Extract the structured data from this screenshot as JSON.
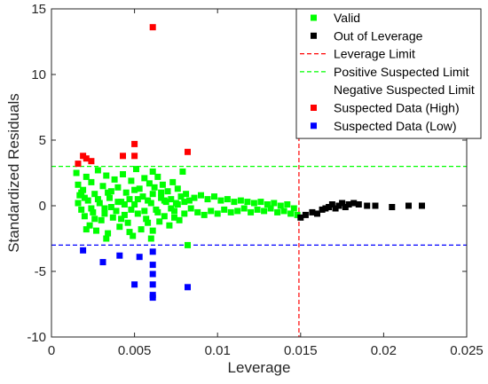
{
  "chart_data": {
    "type": "scatter",
    "xlabel": "Leverage",
    "ylabel": "Standardized Residuals",
    "xlim": [
      0,
      0.025
    ],
    "ylim": [
      -10,
      15
    ],
    "x_ticks": [
      {
        "value": 0,
        "label": "0"
      },
      {
        "value": 0.005,
        "label": "0.005"
      },
      {
        "value": 0.01,
        "label": "0.01"
      },
      {
        "value": 0.015,
        "label": "0.015"
      },
      {
        "value": 0.02,
        "label": "0.02"
      },
      {
        "value": 0.025,
        "label": "0.025"
      }
    ],
    "y_ticks": [
      {
        "value": -10,
        "label": "-10"
      },
      {
        "value": -5,
        "label": "-5"
      },
      {
        "value": 0,
        "label": "0"
      },
      {
        "value": 5,
        "label": "5"
      },
      {
        "value": 10,
        "label": "10"
      },
      {
        "value": 15,
        "label": "15"
      }
    ],
    "grid": false,
    "legend_position": "top-right",
    "reference_lines": [
      {
        "name": "Leverage Limit",
        "orientation": "vertical",
        "value": 0.0149,
        "color": "#ff0000",
        "style": "dashed"
      },
      {
        "name": "Positive Suspected Limit",
        "orientation": "horizontal",
        "value": 3,
        "color": "#00ff00",
        "style": "dashed"
      },
      {
        "name": "Negative Suspected Limit",
        "orientation": "horizontal",
        "value": -3,
        "color": "#0000ff",
        "style": "dashed"
      }
    ],
    "series": [
      {
        "name": "Valid",
        "color": "#00ff00",
        "marker": "square",
        "points": [
          [
            0.0015,
            2.5
          ],
          [
            0.0016,
            1.6
          ],
          [
            0.0017,
            0.8
          ],
          [
            0.0018,
            -0.3
          ],
          [
            0.0019,
            1.2
          ],
          [
            0.002,
            -0.8
          ],
          [
            0.0021,
            2.2
          ],
          [
            0.0022,
            0.4
          ],
          [
            0.0023,
            -1.5
          ],
          [
            0.0024,
            1.8
          ],
          [
            0.0025,
            -0.5
          ],
          [
            0.0026,
            0.9
          ],
          [
            0.0027,
            -1.9
          ],
          [
            0.0028,
            2.7
          ],
          [
            0.0029,
            0.2
          ],
          [
            0.003,
            -1.1
          ],
          [
            0.0031,
            1.5
          ],
          [
            0.0032,
            -0.2
          ],
          [
            0.0033,
            2.3
          ],
          [
            0.0034,
            -2.1
          ],
          [
            0.0035,
            0.6
          ],
          [
            0.0036,
            1.1
          ],
          [
            0.0037,
            -0.9
          ],
          [
            0.0038,
            2.0
          ],
          [
            0.0039,
            -0.4
          ],
          [
            0.004,
            1.4
          ],
          [
            0.0041,
            -1.6
          ],
          [
            0.0042,
            0.3
          ],
          [
            0.0043,
            2.4
          ],
          [
            0.0044,
            -0.7
          ],
          [
            0.0045,
            1.0
          ],
          [
            0.0046,
            -1.3
          ],
          [
            0.0047,
            0.5
          ],
          [
            0.0048,
            1.9
          ],
          [
            0.0049,
            -2.3
          ],
          [
            0.005,
            0.1
          ],
          [
            0.0051,
            2.8
          ],
          [
            0.0052,
            -0.6
          ],
          [
            0.0053,
            1.3
          ],
          [
            0.0054,
            -1.8
          ],
          [
            0.0055,
            0.7
          ],
          [
            0.0056,
            2.1
          ],
          [
            0.0057,
            -1.0
          ],
          [
            0.0058,
            0.4
          ],
          [
            0.0059,
            1.7
          ],
          [
            0.006,
            -2.5
          ],
          [
            0.0061,
            0.9
          ],
          [
            0.0062,
            1.4
          ],
          [
            0.0063,
            -0.3
          ],
          [
            0.0064,
            2.2
          ],
          [
            0.0065,
            -1.2
          ],
          [
            0.0066,
            0.6
          ],
          [
            0.0067,
            1.6
          ],
          [
            0.0068,
            -0.8
          ],
          [
            0.0069,
            0.3
          ],
          [
            0.007,
            1.1
          ],
          [
            0.0071,
            -1.5
          ],
          [
            0.0072,
            0.5
          ],
          [
            0.0073,
            1.8
          ],
          [
            0.0074,
            -0.4
          ],
          [
            0.0075,
            0.2
          ],
          [
            0.0076,
            1.3
          ],
          [
            0.0077,
            -1.1
          ],
          [
            0.0078,
            0.7
          ],
          [
            0.0079,
            2.6
          ],
          [
            0.008,
            -0.6
          ],
          [
            0.0081,
            0.9
          ],
          [
            0.0082,
            -3.0
          ],
          [
            0.0083,
            0.4
          ],
          [
            0.0084,
            -0.2
          ],
          [
            0.0086,
            0.6
          ],
          [
            0.0088,
            -0.5
          ],
          [
            0.009,
            0.8
          ],
          [
            0.0092,
            -0.7
          ],
          [
            0.0094,
            0.5
          ],
          [
            0.0096,
            -0.4
          ],
          [
            0.0098,
            0.7
          ],
          [
            0.01,
            -0.6
          ],
          [
            0.0102,
            0.4
          ],
          [
            0.0104,
            -0.3
          ],
          [
            0.0106,
            0.5
          ],
          [
            0.0108,
            -0.5
          ],
          [
            0.011,
            0.3
          ],
          [
            0.0112,
            -0.4
          ],
          [
            0.0114,
            0.4
          ],
          [
            0.0116,
            -0.2
          ],
          [
            0.0118,
            0.3
          ],
          [
            0.012,
            -0.5
          ],
          [
            0.0122,
            0.2
          ],
          [
            0.0124,
            -0.3
          ],
          [
            0.0126,
            0.3
          ],
          [
            0.0128,
            -0.4
          ],
          [
            0.013,
            0.1
          ],
          [
            0.0132,
            -0.2
          ],
          [
            0.0134,
            0.2
          ],
          [
            0.0136,
            -0.5
          ],
          [
            0.0138,
            0.0
          ],
          [
            0.014,
            -0.4
          ],
          [
            0.0142,
            0.1
          ],
          [
            0.0144,
            -0.6
          ],
          [
            0.0146,
            -0.2
          ],
          [
            0.0148,
            -0.7
          ],
          [
            0.0016,
            0.2
          ],
          [
            0.002,
            0.6
          ],
          [
            0.0024,
            -0.2
          ],
          [
            0.0028,
            0.5
          ],
          [
            0.0032,
            -0.6
          ],
          [
            0.0036,
            -0.1
          ],
          [
            0.004,
            0.3
          ],
          [
            0.0044,
            0.1
          ],
          [
            0.0048,
            -0.3
          ],
          [
            0.0052,
            0.5
          ],
          [
            0.0056,
            -0.4
          ],
          [
            0.006,
            0.2
          ],
          [
            0.0064,
            -0.5
          ],
          [
            0.0068,
            0.4
          ],
          [
            0.0072,
            -0.2
          ],
          [
            0.0076,
            0.1
          ],
          [
            0.008,
            0.3
          ],
          [
            0.0018,
            1.0
          ],
          [
            0.0026,
            -1.0
          ],
          [
            0.0034,
            1.0
          ],
          [
            0.0042,
            -1.0
          ],
          [
            0.005,
            1.2
          ],
          [
            0.0058,
            -1.3
          ],
          [
            0.0066,
            1.0
          ],
          [
            0.0074,
            -0.9
          ],
          [
            0.0061,
            -1.9
          ],
          [
            0.0061,
            2.6
          ],
          [
            0.0047,
            -2.0
          ],
          [
            0.0033,
            -2.5
          ],
          [
            0.0021,
            -1.8
          ]
        ]
      },
      {
        "name": "Out of Leverage",
        "color": "#000000",
        "marker": "square",
        "points": [
          [
            0.015,
            -0.9
          ],
          [
            0.0153,
            -0.7
          ],
          [
            0.0157,
            -0.5
          ],
          [
            0.016,
            -0.6
          ],
          [
            0.0163,
            -0.3
          ],
          [
            0.0165,
            -0.2
          ],
          [
            0.0167,
            -0.1
          ],
          [
            0.0169,
            0.1
          ],
          [
            0.0171,
            -0.2
          ],
          [
            0.0173,
            0.0
          ],
          [
            0.0175,
            0.2
          ],
          [
            0.0177,
            -0.1
          ],
          [
            0.0179,
            0.1
          ],
          [
            0.0182,
            0.2
          ],
          [
            0.0185,
            0.1
          ],
          [
            0.019,
            0.0
          ],
          [
            0.0195,
            0.0
          ],
          [
            0.0205,
            -0.1
          ],
          [
            0.0215,
            0.0
          ],
          [
            0.0223,
            0.0
          ]
        ]
      },
      {
        "name": "Suspected Data (High)",
        "color": "#ff0000",
        "marker": "square",
        "points": [
          [
            0.0016,
            3.2
          ],
          [
            0.0019,
            3.8
          ],
          [
            0.0021,
            3.6
          ],
          [
            0.0024,
            3.4
          ],
          [
            0.0043,
            3.8
          ],
          [
            0.005,
            4.7
          ],
          [
            0.005,
            3.8
          ],
          [
            0.0061,
            13.6
          ],
          [
            0.0082,
            4.1
          ]
        ]
      },
      {
        "name": "Suspected Data (Low)",
        "color": "#0000ff",
        "marker": "square",
        "points": [
          [
            0.0019,
            -3.4
          ],
          [
            0.0031,
            -4.3
          ],
          [
            0.0041,
            -3.8
          ],
          [
            0.005,
            -6.0
          ],
          [
            0.0053,
            -3.9
          ],
          [
            0.0061,
            -3.5
          ],
          [
            0.0061,
            -4.5
          ],
          [
            0.0061,
            -5.2
          ],
          [
            0.0061,
            -6.0
          ],
          [
            0.0061,
            -6.8
          ],
          [
            0.0061,
            -7.0
          ],
          [
            0.0082,
            -6.2
          ]
        ]
      }
    ],
    "legend": [
      {
        "label": "Valid",
        "kind": "marker",
        "color": "#00ff00"
      },
      {
        "label": "Out of Leverage",
        "kind": "marker",
        "color": "#000000"
      },
      {
        "label": "Leverage Limit",
        "kind": "dash",
        "color": "#ff0000"
      },
      {
        "label": "Positive Suspected Limit",
        "kind": "dash",
        "color": "#00ff00"
      },
      {
        "label": "Negative Suspected Limit",
        "kind": "none",
        "color": "#0000ff"
      },
      {
        "label": "Suspected Data (High)",
        "kind": "marker",
        "color": "#ff0000"
      },
      {
        "label": "Suspected Data (Low)",
        "kind": "marker",
        "color": "#0000ff"
      }
    ]
  }
}
